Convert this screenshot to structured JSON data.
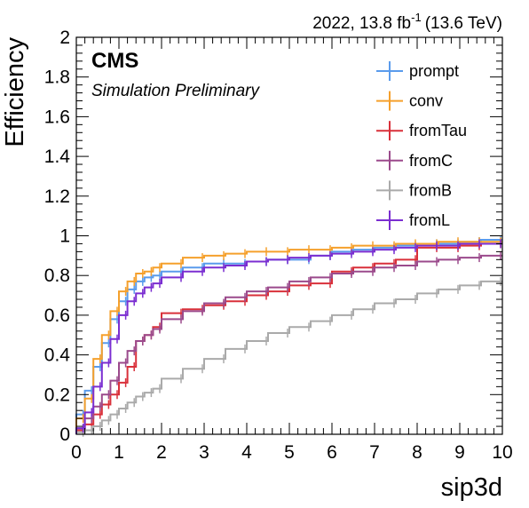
{
  "chart_data": {
    "type": "line",
    "title": "CMS",
    "subtitle": "Simulation Preliminary",
    "lumi_label": "2022, 13.8 fb",
    "lumi_exp": "-1",
    "lumi_energy": "(13.6 TeV)",
    "xlabel": "sip3d",
    "ylabel": "Efficiency",
    "xlim": [
      0,
      10
    ],
    "ylim": [
      0,
      2
    ],
    "x_ticks": [
      0,
      1,
      2,
      3,
      4,
      5,
      6,
      7,
      8,
      9,
      10
    ],
    "y_ticks": [
      0,
      0.2,
      0.4,
      0.6,
      0.8,
      1,
      1.2,
      1.4,
      1.6,
      1.8,
      2
    ],
    "y_tick_labels": [
      "0",
      "0.2",
      "0.4",
      "0.6",
      "0.8",
      "1",
      "1.2",
      "1.4",
      "1.6",
      "1.8",
      "2"
    ],
    "grid": false,
    "legend_position": "top-right",
    "x": [
      0.2,
      0.4,
      0.6,
      0.8,
      1.0,
      1.2,
      1.4,
      1.6,
      1.8,
      2.0,
      2.5,
      3.0,
      3.5,
      4.0,
      4.5,
      5.0,
      5.5,
      6.0,
      6.5,
      7.0,
      7.5,
      8.0,
      8.5,
      9.0,
      9.5,
      10.0
    ],
    "series": [
      {
        "name": "prompt",
        "color": "#5a9bec",
        "values": [
          0.1,
          0.22,
          0.34,
          0.46,
          0.58,
          0.67,
          0.73,
          0.77,
          0.79,
          0.8,
          0.82,
          0.84,
          0.86,
          0.86,
          0.87,
          0.88,
          0.88,
          0.9,
          0.92,
          0.93,
          0.94,
          0.95,
          0.96,
          0.96,
          0.97,
          0.98
        ]
      },
      {
        "name": "conv",
        "color": "#f5a02c",
        "values": [
          0.08,
          0.18,
          0.38,
          0.5,
          0.62,
          0.72,
          0.77,
          0.81,
          0.82,
          0.84,
          0.86,
          0.89,
          0.9,
          0.91,
          0.92,
          0.92,
          0.93,
          0.93,
          0.94,
          0.95,
          0.95,
          0.96,
          0.96,
          0.97,
          0.97,
          0.97
        ]
      },
      {
        "name": "fromTau",
        "color": "#d9303a",
        "values": [
          0.02,
          0.05,
          0.1,
          0.15,
          0.2,
          0.26,
          0.34,
          0.47,
          0.5,
          0.54,
          0.61,
          0.63,
          0.65,
          0.67,
          0.7,
          0.72,
          0.75,
          0.76,
          0.82,
          0.84,
          0.86,
          0.88,
          0.94,
          0.94,
          0.95,
          0.96
        ]
      },
      {
        "name": "fromC",
        "color": "#9b4a8c",
        "values": [
          0.03,
          0.08,
          0.14,
          0.2,
          0.27,
          0.36,
          0.42,
          0.47,
          0.5,
          0.53,
          0.58,
          0.62,
          0.66,
          0.69,
          0.72,
          0.74,
          0.77,
          0.79,
          0.81,
          0.82,
          0.84,
          0.85,
          0.87,
          0.88,
          0.89,
          0.9
        ]
      },
      {
        "name": "fromB",
        "color": "#aaaaaa",
        "values": [
          0.01,
          0.02,
          0.04,
          0.07,
          0.1,
          0.13,
          0.16,
          0.19,
          0.21,
          0.23,
          0.28,
          0.33,
          0.38,
          0.43,
          0.47,
          0.51,
          0.54,
          0.57,
          0.6,
          0.63,
          0.66,
          0.68,
          0.71,
          0.73,
          0.75,
          0.77
        ]
      },
      {
        "name": "fromL",
        "color": "#7b2ed1",
        "values": [
          0.03,
          0.11,
          0.24,
          0.36,
          0.48,
          0.6,
          0.67,
          0.71,
          0.74,
          0.76,
          0.79,
          0.82,
          0.84,
          0.85,
          0.87,
          0.88,
          0.89,
          0.9,
          0.91,
          0.92,
          0.93,
          0.94,
          0.95,
          0.95,
          0.96,
          0.96
        ]
      }
    ]
  }
}
